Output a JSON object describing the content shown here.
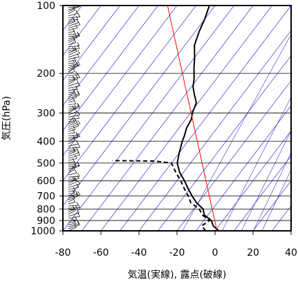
{
  "chart_data": {
    "type": "line",
    "chart_kind": "skew-T log-p diagram",
    "xlabel": "気温(実線), 露点(破線)",
    "ylabel": "気圧(hPa)",
    "xlim": [
      -80,
      40
    ],
    "ylim": [
      1000,
      100
    ],
    "y_scale": "log",
    "skew_degC_per_decade": 90,
    "x_ticks": [
      -80,
      -60,
      -40,
      -20,
      0,
      20,
      40
    ],
    "x_tick_labels": [
      "-80",
      "-60",
      "-40",
      "-20",
      "0",
      "20",
      "40"
    ],
    "y_ticks": [
      100,
      200,
      300,
      400,
      500,
      600,
      700,
      800,
      900,
      1000
    ],
    "y_tick_labels": [
      "100",
      "200",
      "300",
      "400",
      "500",
      "600",
      "700",
      "800",
      "900",
      "1000"
    ],
    "grid": true,
    "isotherm_step": 10,
    "mixing_ratio_labels": [
      "1",
      "5",
      "10",
      "15",
      "20",
      "g"
    ],
    "mixing_ratio_values": [
      1,
      5,
      10,
      15,
      20
    ],
    "colors": {
      "temperature": "#000000",
      "dewpoint": "#000000",
      "reference": "#ff0000",
      "isopleth": "#3333cc",
      "grid": "#000000"
    },
    "series": [
      {
        "name": "気温",
        "style": "solid",
        "p": [
          1000,
          950,
          900,
          850,
          800,
          750,
          700,
          650,
          600,
          550,
          500,
          450,
          400,
          380,
          350,
          320,
          300,
          270,
          250,
          230,
          210,
          190,
          170,
          150,
          130,
          115,
          100
        ],
        "t": [
          2,
          -3,
          -6,
          -12,
          -15,
          -21,
          -26,
          -31,
          -36,
          -42,
          -47,
          -50,
          -53,
          -54,
          -56,
          -57,
          -59,
          -61,
          -65,
          -69,
          -72,
          -76,
          -80,
          -85,
          -88,
          -90,
          -93
        ]
      },
      {
        "name": "露点",
        "style": "dashed",
        "p": [
          1000,
          950,
          900,
          850,
          800,
          750,
          700,
          650,
          600,
          550,
          500,
          490,
          488
        ],
        "t": [
          -5,
          -9,
          -7,
          -13,
          -17,
          -24,
          -28,
          -33,
          -38,
          -44,
          -50,
          -60,
          -82
        ]
      },
      {
        "name": "reference",
        "style": "solid",
        "p": [
          1000,
          100
        ],
        "t": [
          1,
          -115
        ]
      }
    ],
    "wind_barbs": {
      "p_top": 100,
      "p_bottom": 1000,
      "count": 110,
      "x_temp": -75
    }
  }
}
